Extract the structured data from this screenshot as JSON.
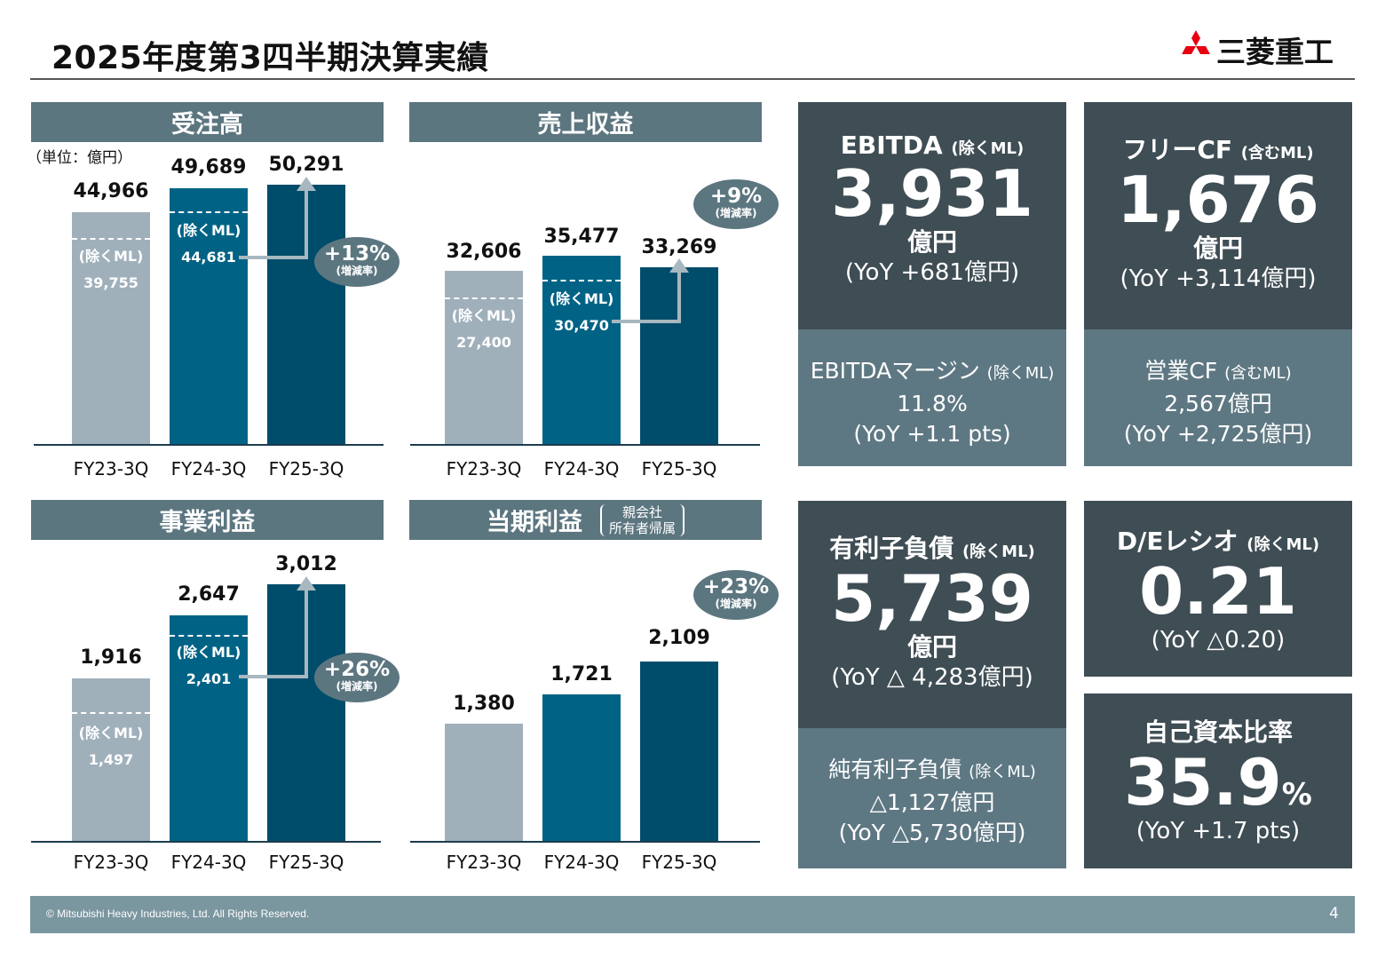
{
  "title": "2025年度第3四半期決算実績",
  "logo": {
    "text": "三菱重工"
  },
  "unit_note": "（単位：億円）",
  "excl_label": "(除くML)",
  "growth_sub": "(増減率)",
  "categories": [
    "FY23-3Q",
    "FY24-3Q",
    "FY25-3Q"
  ],
  "chart_data": [
    {
      "type": "bar",
      "title": "受注高",
      "categories": [
        "FY23-3Q",
        "FY24-3Q",
        "FY25-3Q"
      ],
      "values": [
        44966,
        49689,
        50291
      ],
      "value_labels": [
        "44,966",
        "49,689",
        "50,291"
      ],
      "excl_ml_values": [
        39755,
        44681
      ],
      "excl_ml_labels": [
        "39,755",
        "44,681"
      ],
      "growth": "+13%",
      "ylim": [
        0,
        50291
      ]
    },
    {
      "type": "bar",
      "title": "売上収益",
      "categories": [
        "FY23-3Q",
        "FY24-3Q",
        "FY25-3Q"
      ],
      "values": [
        32606,
        35477,
        33269
      ],
      "value_labels": [
        "32,606",
        "35,477",
        "33,269"
      ],
      "excl_ml_values": [
        27400,
        30470
      ],
      "excl_ml_labels": [
        "27,400",
        "30,470"
      ],
      "growth": "+9%",
      "ylim": [
        0,
        50291
      ]
    },
    {
      "type": "bar",
      "title": "事業利益",
      "categories": [
        "FY23-3Q",
        "FY24-3Q",
        "FY25-3Q"
      ],
      "values": [
        1916,
        2647,
        3012
      ],
      "value_labels": [
        "1,916",
        "2,647",
        "3,012"
      ],
      "excl_ml_values": [
        1497,
        2401
      ],
      "excl_ml_labels": [
        "1,497",
        "2,401"
      ],
      "growth": "+26%",
      "ylim": [
        0,
        3012
      ]
    },
    {
      "type": "bar",
      "title": "当期利益",
      "subtitle": "親会社\n所有者帰属",
      "categories": [
        "FY23-3Q",
        "FY24-3Q",
        "FY25-3Q"
      ],
      "values": [
        1380,
        1721,
        2109
      ],
      "value_labels": [
        "1,380",
        "1,721",
        "2,109"
      ],
      "growth": "+23%",
      "ylim": [
        0,
        3012
      ]
    }
  ],
  "panels": {
    "orders": {
      "title": "受注高",
      "v1": "44,966",
      "v2": "49,689",
      "v3": "50,291",
      "x1": "39,755",
      "x2": "44,681",
      "growth": "+13%"
    },
    "revenue": {
      "title": "売上収益",
      "v1": "32,606",
      "v2": "35,477",
      "v3": "33,269",
      "x1": "27,400",
      "x2": "30,470",
      "growth": "+9%"
    },
    "profit": {
      "title": "事業利益",
      "v1": "1,916",
      "v2": "2,647",
      "v3": "3,012",
      "x1": "1,497",
      "x2": "2,401",
      "growth": "+26%"
    },
    "net": {
      "title": "当期利益",
      "sub1": "親会社",
      "sub2": "所有者帰属",
      "v1": "1,380",
      "v2": "1,721",
      "v3": "2,109",
      "growth": "+23%"
    }
  },
  "kpi": {
    "ebitda": {
      "title": "EBITDA",
      "qual": "(除くML)",
      "value": "3,931",
      "unit": "億円",
      "yoy": "(YoY +681億円)",
      "sub_title": "EBITDAマージン",
      "sub_qual": "(除くML)",
      "sub_value": "11.8%",
      "sub_yoy": "(YoY +1.1 pts)"
    },
    "fcf": {
      "title": "フリーCF",
      "qual": "(含むML)",
      "value": "1,676",
      "unit": "億円",
      "yoy": "(YoY +3,114億円)",
      "sub_title": "営業CF",
      "sub_qual": "(含むML)",
      "sub_value": "2,567億円",
      "sub_yoy": "(YoY +2,725億円)"
    },
    "debt": {
      "title": "有利子負債",
      "qual": "(除くML)",
      "value": "5,739",
      "unit": "億円",
      "yoy": "(YoY △ 4,283億円)",
      "sub_title": "純有利子負債",
      "sub_qual": "(除くML)",
      "sub_value": "△1,127億円",
      "sub_yoy": "(YoY △5,730億円)"
    },
    "de": {
      "title": "D/Eレシオ",
      "qual": "(除くML)",
      "value": "0.21",
      "yoy": "(YoY △0.20)"
    },
    "equity": {
      "title": "自己資本比率",
      "value": "35.9",
      "unit": "%",
      "yoy": "(YoY +1.7 pts)"
    }
  },
  "colors": {
    "header": "#5c7680",
    "bar_fy23": "#a0b0bb",
    "bar_fy24": "#006385",
    "bar_fy25": "#004d6b",
    "kpi_dark": "#3f4d54",
    "kpi_light": "#5e7883",
    "footer": "#7a969f",
    "logo_red": "#e60012"
  },
  "footer": {
    "copyright": "© Mitsubishi Heavy Industries, Ltd.  All Rights Reserved.",
    "page": "4"
  }
}
